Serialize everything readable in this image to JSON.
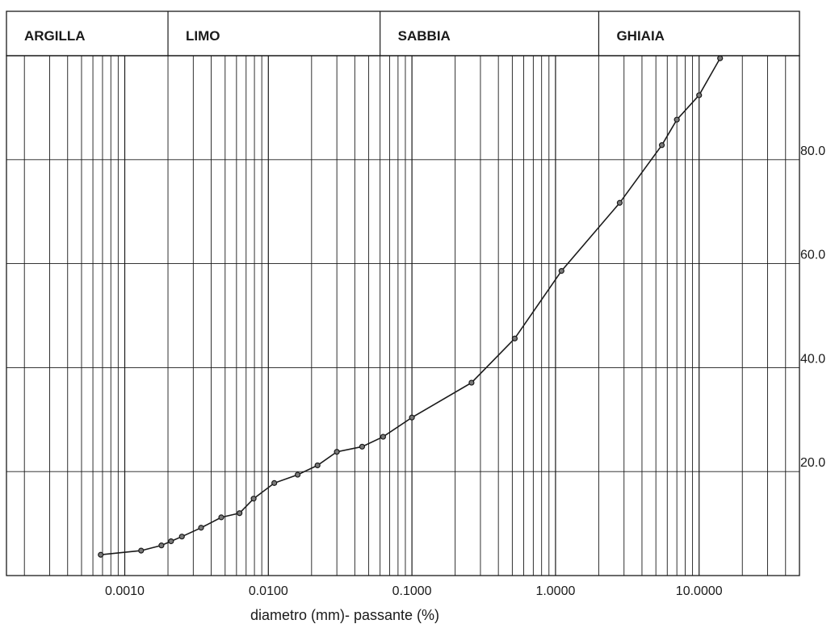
{
  "chart_data": {
    "type": "line",
    "x_scale": "log",
    "xlim": [
      0.00015,
      50
    ],
    "ylim": [
      0,
      100
    ],
    "xlabel": "diametro (mm)- passante (%)",
    "ylabel": "",
    "grid": true,
    "x_tick_labels": [
      {
        "value": 0.001,
        "label": "0.0010"
      },
      {
        "value": 0.01,
        "label": "0.0100"
      },
      {
        "value": 0.1,
        "label": "0.1000"
      },
      {
        "value": 1,
        "label": "1.0000"
      },
      {
        "value": 10,
        "label": "10.0000"
      }
    ],
    "y_tick_labels": [
      {
        "value": 20,
        "label": "20.0"
      },
      {
        "value": 40,
        "label": "40.0"
      },
      {
        "value": 60,
        "label": "60.0"
      },
      {
        "value": 80,
        "label": "80.0"
      }
    ],
    "bands": [
      {
        "label": "ARGILLA",
        "from": 0.00015,
        "to": 0.002
      },
      {
        "label": "LIMO",
        "from": 0.002,
        "to": 0.06
      },
      {
        "label": "SABBIA",
        "from": 0.06,
        "to": 2
      },
      {
        "label": "GHIAIA",
        "from": 2,
        "to": 50
      }
    ],
    "series": [
      {
        "x": [
          0.00068,
          0.0013,
          0.0018,
          0.0021,
          0.0025,
          0.0034,
          0.0047,
          0.0063,
          0.0079,
          0.011,
          0.016,
          0.022,
          0.03,
          0.045,
          0.063,
          0.1,
          0.26,
          0.52,
          1.1,
          2.8,
          5.5,
          7.0,
          10.0,
          14.0
        ],
        "y": [
          4.0,
          4.8,
          5.8,
          6.6,
          7.5,
          9.2,
          11.2,
          12.0,
          14.8,
          17.8,
          19.4,
          21.2,
          23.8,
          24.8,
          26.7,
          30.4,
          37.1,
          45.6,
          58.6,
          71.7,
          82.8,
          87.7,
          92.4,
          99.5
        ]
      }
    ]
  }
}
